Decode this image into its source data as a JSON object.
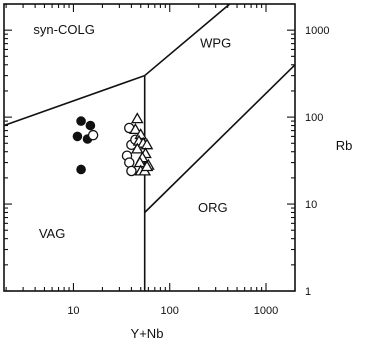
{
  "chart_data": {
    "type": "scatter",
    "title": "",
    "xlabel": "Y+Nb",
    "ylabel": "Rb",
    "x_scale": "log",
    "y_scale": "log",
    "xlim": [
      1.9,
      2000
    ],
    "ylim": [
      1,
      2000
    ],
    "x_ticks": [
      {
        "value": 10,
        "label": "10"
      },
      {
        "value": 100,
        "label": "100"
      },
      {
        "value": 1000,
        "label": "1000"
      }
    ],
    "y_ticks": [
      {
        "value": 1,
        "label": "1"
      },
      {
        "value": 10,
        "label": "10"
      },
      {
        "value": 100,
        "label": "100"
      },
      {
        "value": 1000,
        "label": "1000"
      }
    ],
    "y_axis_side": "right",
    "grid": false,
    "fields": [
      {
        "label": "syn-COLG",
        "x": 8,
        "y": 1000
      },
      {
        "label": "WPG",
        "x": 300,
        "y": 700
      },
      {
        "label": "VAG",
        "x": 6,
        "y": 4.5
      },
      {
        "label": "ORG",
        "x": 280,
        "y": 9
      }
    ],
    "boundaries": [
      {
        "points": [
          [
            1.9,
            80
          ],
          [
            55,
            300
          ],
          [
            420,
            2000
          ]
        ]
      },
      {
        "points": [
          [
            55,
            300
          ],
          [
            55,
            1
          ]
        ]
      },
      {
        "points": [
          [
            55,
            8
          ],
          [
            2000,
            400
          ]
        ]
      }
    ],
    "series": [
      {
        "marker": "filled-circle",
        "points": [
          [
            12,
            90
          ],
          [
            15,
            80
          ],
          [
            11,
            60
          ],
          [
            14,
            56
          ],
          [
            12,
            25
          ]
        ]
      },
      {
        "marker": "open-circle",
        "points": [
          [
            16,
            62
          ],
          [
            38,
            75
          ],
          [
            40,
            48
          ],
          [
            36,
            36
          ],
          [
            38,
            30
          ],
          [
            40,
            24
          ],
          [
            44,
            55
          ]
        ]
      },
      {
        "marker": "open-triangle",
        "points": [
          [
            46,
            96
          ],
          [
            44,
            72
          ],
          [
            50,
            63
          ],
          [
            48,
            53
          ],
          [
            53,
            50
          ],
          [
            58,
            48
          ],
          [
            46,
            43
          ],
          [
            56,
            38
          ],
          [
            52,
            34
          ],
          [
            49,
            30
          ],
          [
            60,
            28
          ],
          [
            50,
            24
          ],
          [
            55,
            24
          ],
          [
            58,
            27
          ]
        ]
      }
    ]
  }
}
